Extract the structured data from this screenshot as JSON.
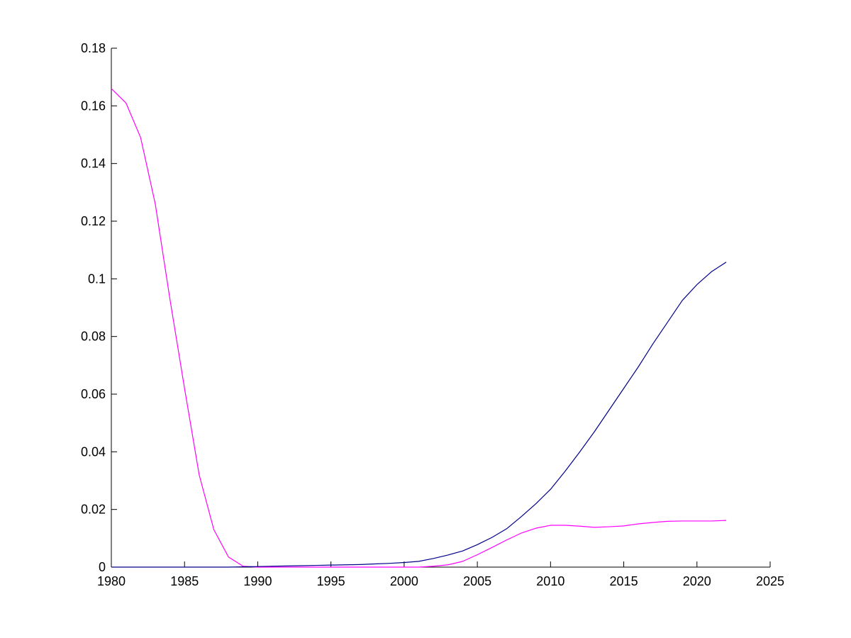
{
  "chart_data": {
    "type": "line",
    "title": "",
    "xlabel": "",
    "ylabel": "",
    "xlim": [
      1980,
      2025
    ],
    "ylim": [
      0,
      0.18
    ],
    "xticks": [
      "1980",
      "1985",
      "1990",
      "1995",
      "2000",
      "2005",
      "2010",
      "2015",
      "2020",
      "2025"
    ],
    "yticks": [
      "0",
      "0.02",
      "0.04",
      "0.06",
      "0.08",
      "0.1",
      "0.12",
      "0.14",
      "0.16",
      "0.18"
    ],
    "grid": false,
    "legend": "none",
    "x": [
      1980,
      1981,
      1982,
      1983,
      1984,
      1985,
      1986,
      1987,
      1988,
      1989,
      1990,
      1991,
      1992,
      1993,
      1994,
      1995,
      1996,
      1997,
      1998,
      1999,
      2000,
      2001,
      2002,
      2003,
      2004,
      2005,
      2006,
      2007,
      2008,
      2009,
      2010,
      2011,
      2012,
      2013,
      2014,
      2015,
      2016,
      2017,
      2018,
      2019,
      2020,
      2021,
      2022
    ],
    "series": [
      {
        "color": "#ff00ff",
        "values": [
          0.166,
          0.161,
          0.149,
          0.126,
          0.093,
          0.062,
          0.032,
          0.013,
          0.0035,
          0.0003,
          0,
          0,
          0,
          0,
          0,
          0,
          0,
          0,
          0,
          0,
          0,
          0,
          0.0003,
          0.0008,
          0.002,
          0.0043,
          0.0068,
          0.0094,
          0.0118,
          0.0135,
          0.0145,
          0.0145,
          0.0142,
          0.0138,
          0.014,
          0.0143,
          0.015,
          0.0155,
          0.0159,
          0.016,
          0.016,
          0.016,
          0.0162
        ]
      },
      {
        "color": "#00008b",
        "values": [
          0,
          0,
          0,
          0,
          0,
          0,
          0,
          0,
          0,
          0.0001,
          0.0002,
          0.0003,
          0.0004,
          0.0005,
          0.0006,
          0.0007,
          0.0008,
          0.0009,
          0.0011,
          0.0013,
          0.0016,
          0.002,
          0.003,
          0.0042,
          0.0056,
          0.0078,
          0.0103,
          0.0133,
          0.0175,
          0.022,
          0.027,
          0.0333,
          0.04,
          0.047,
          0.0545,
          0.062,
          0.0695,
          0.0775,
          0.085,
          0.0925,
          0.098,
          0.1025,
          0.1058
        ]
      }
    ]
  }
}
